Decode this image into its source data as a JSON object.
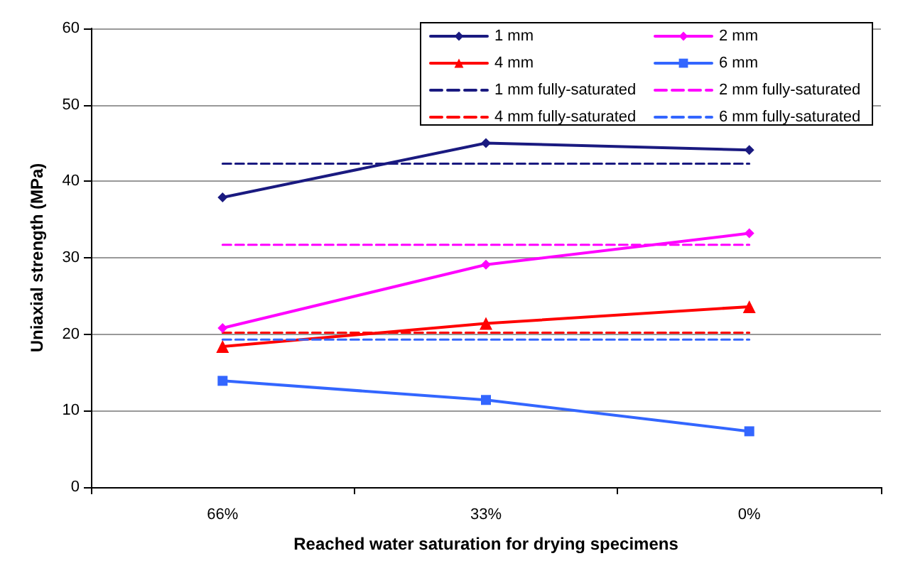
{
  "chart_data": {
    "type": "line",
    "xlabel": "Reached water saturation for drying specimens",
    "ylabel": "Uniaxial strength (MPa)",
    "categories": [
      "66%",
      "33%",
      "0%"
    ],
    "ylim": [
      0,
      60
    ],
    "yticks": [
      0,
      10,
      20,
      30,
      40,
      50,
      60
    ],
    "grid": "y",
    "legend": "top right",
    "series": [
      {
        "name": "1 mm",
        "color": "#1a1a80",
        "values": [
          37.9,
          45.0,
          44.1
        ],
        "marker": "diamond",
        "line_style": "solid"
      },
      {
        "name": "2 mm",
        "color": "#ff00ff",
        "values": [
          20.8,
          29.1,
          33.2
        ],
        "marker": "diamond",
        "line_style": "solid"
      },
      {
        "name": "4 mm",
        "color": "#ff0000",
        "values": [
          18.4,
          21.4,
          23.6
        ],
        "marker": "triangle",
        "line_style": "solid"
      },
      {
        "name": "6 mm",
        "color": "#3366ff",
        "values": [
          13.9,
          11.4,
          7.3
        ],
        "marker": "square",
        "line_style": "solid"
      },
      {
        "name": "1 mm fully-saturated",
        "color": "#1a1a80",
        "values": [
          42.3,
          42.3,
          42.3
        ],
        "marker": "none",
        "line_style": "dashed"
      },
      {
        "name": "2 mm fully-saturated",
        "color": "#ff00ff",
        "values": [
          31.7,
          31.7,
          31.7
        ],
        "marker": "none",
        "line_style": "dashed"
      },
      {
        "name": "4 mm fully-saturated",
        "color": "#ff0000",
        "values": [
          20.2,
          20.2,
          20.2
        ],
        "marker": "none",
        "line_style": "dashed"
      },
      {
        "name": "6 mm fully-saturated",
        "color": "#3366ff",
        "values": [
          19.3,
          19.3,
          19.3
        ],
        "marker": "none",
        "line_style": "dashed"
      }
    ]
  }
}
